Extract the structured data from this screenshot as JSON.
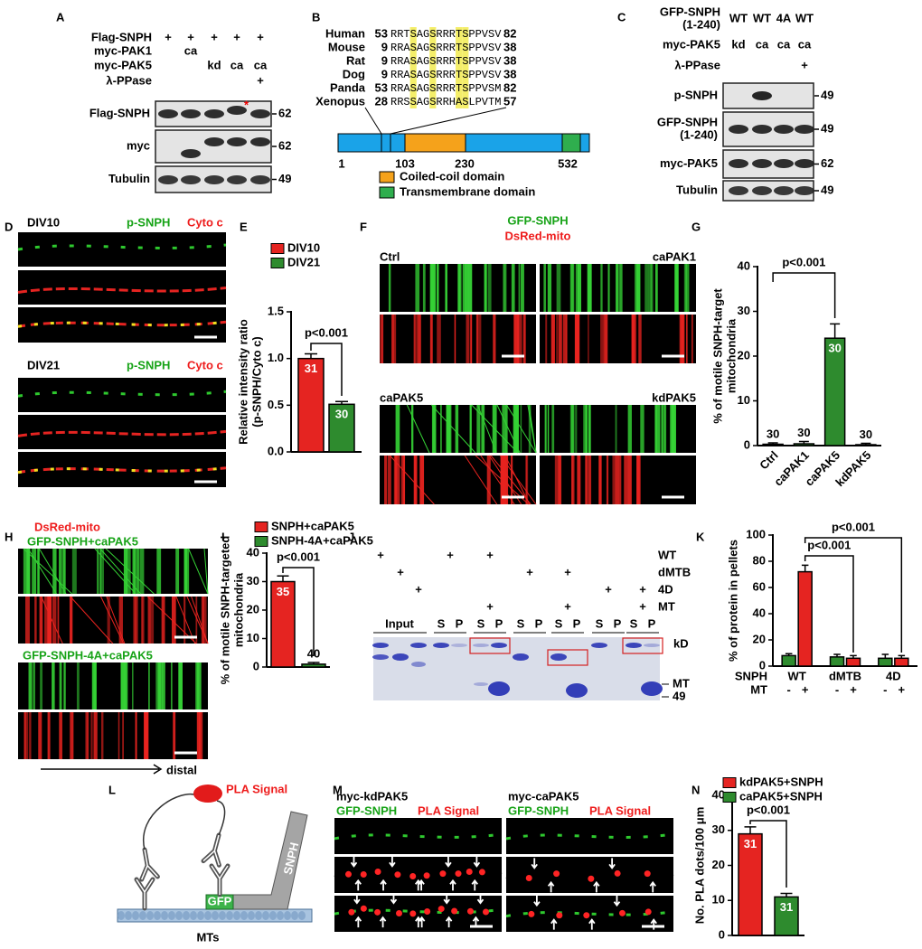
{
  "A": {
    "label": "A",
    "conditions": [
      {
        "name": "Flag-SNPH",
        "lanes": [
          "+",
          "+",
          "+",
          "+",
          "+"
        ]
      },
      {
        "name": "myc-PAK1",
        "lanes": [
          null,
          "ca",
          null,
          null,
          null
        ]
      },
      {
        "name": "myc-PAK5",
        "lanes": [
          null,
          null,
          "kd",
          "ca",
          "ca"
        ]
      },
      {
        "name": "λ-PPase",
        "lanes": [
          null,
          null,
          null,
          null,
          "+"
        ]
      }
    ],
    "blots": [
      {
        "name": [
          "Flag-SNPH"
        ],
        "mw": 62
      },
      {
        "name": [
          "myc"
        ],
        "mw": 62
      },
      {
        "name": [
          "Tubulin"
        ],
        "mw": 49
      }
    ],
    "marker": "*"
  },
  "B": {
    "label": "B",
    "alignment": [
      {
        "species": "Human",
        "start": 53,
        "sequence": "RRTSAGSRRRTSPPVSV",
        "end": 82
      },
      {
        "species": "Mouse",
        "start": 9,
        "sequence": "RRASAGSRRRTSPPVSV",
        "end": 38
      },
      {
        "species": "Rat",
        "start": 9,
        "sequence": "RRASAGSRRRTSPPVSV",
        "end": 38
      },
      {
        "species": "Dog",
        "start": 9,
        "sequence": "RRASAGSRRRTSPPVSV",
        "end": 38
      },
      {
        "species": "Panda",
        "start": 53,
        "sequence": "RRASAGSRRRTSPPVSM",
        "end": 82
      },
      {
        "species": "Xenopus",
        "start": 28,
        "sequence": "RRSSAGSRRHASLPVTM",
        "end": 57
      }
    ],
    "domain_positions": [
      1,
      103,
      230,
      532
    ],
    "legend": [
      "Coiled-coil domain",
      "Transmembrane domain"
    ]
  },
  "C": {
    "label": "C",
    "conditions": [
      {
        "name": [
          "GFP-SNPH",
          "(1-240)"
        ],
        "lanes": [
          "WT",
          "WT",
          "4A",
          "WT"
        ]
      },
      {
        "name": [
          "myc-PAK5"
        ],
        "lanes": [
          "kd",
          "ca",
          "ca",
          "ca"
        ]
      },
      {
        "name": [
          "λ-PPase"
        ],
        "lanes": [
          null,
          null,
          null,
          "+"
        ]
      }
    ],
    "blots": [
      {
        "name": [
          "p-SNPH"
        ],
        "mw": 49
      },
      {
        "name": [
          "GFP-SNPH",
          "(1-240)"
        ],
        "mw": 49
      },
      {
        "name": [
          "myc-PAK5"
        ],
        "mw": 62
      },
      {
        "name": [
          "Tubulin"
        ],
        "mw": 49
      }
    ]
  },
  "D": {
    "label": "D",
    "panels": [
      {
        "title": "DIV10",
        "stains": [
          "p-SNPH",
          "Cyto c"
        ]
      },
      {
        "title": "DIV21",
        "stains": [
          "p-SNPH",
          "Cyto c"
        ]
      }
    ]
  },
  "E": {
    "label": "E",
    "chart": {
      "type": "bar",
      "ylabel": [
        "Relative intensity ratio",
        "(p-SNPH/Cyto c)"
      ],
      "series": [
        {
          "name": "DIV10",
          "color": "#e52421",
          "values": [
            1.0
          ],
          "errors": [
            0.05
          ],
          "n": [
            31
          ]
        },
        {
          "name": "DIV21",
          "color": "#2e8b2e",
          "values": [
            0.51
          ],
          "errors": [
            0.03
          ],
          "n": [
            30
          ]
        }
      ],
      "ylim": [
        0,
        1.5
      ],
      "yticks": [
        {
          "value": 0,
          "label": "0.0"
        },
        {
          "value": 0.5,
          "label": "0.5"
        },
        {
          "value": 1,
          "label": "1.0"
        },
        {
          "value": 1.5,
          "label": "1.5"
        }
      ],
      "annotations": [
        "p<0.001"
      ]
    }
  },
  "F": {
    "label": "F",
    "stains": [
      "GFP-SNPH",
      "DsRed-mito"
    ],
    "conditions": [
      "Ctrl",
      "caPAK1",
      "caPAK5",
      "kdPAK5"
    ]
  },
  "G": {
    "label": "G",
    "chart": {
      "type": "bar",
      "ylabel": [
        "% of motile SNPH-target",
        "mitochondria"
      ],
      "categories": [
        "Ctrl",
        "caPAK1",
        "caPAK5",
        "kdPAK5"
      ],
      "series": [
        {
          "color": "#2e8b2e",
          "values": [
            0.3,
            0.4,
            24,
            0.2
          ],
          "errors": [
            0.3,
            0.5,
            3.2,
            0.3
          ],
          "n": [
            30,
            30,
            30,
            30
          ]
        }
      ],
      "ylim": [
        0,
        40
      ],
      "yticks": [
        0,
        10,
        20,
        30,
        40
      ],
      "annotations": [
        "p<0.001"
      ]
    }
  },
  "H": {
    "label": "H",
    "stain": "DsRed-mito",
    "conditions": [
      "GFP-SNPH+caPAK5",
      "GFP-SNPH-4A+caPAK5"
    ],
    "direction": "distal"
  },
  "I": {
    "label": "I",
    "chart": {
      "type": "bar",
      "ylabel": [
        "% of motile SNPH-targeted",
        "mitochondria"
      ],
      "series": [
        {
          "name": "SNPH+caPAK5",
          "color": "#e52421",
          "values": [
            30
          ],
          "errors": [
            2
          ],
          "n": [
            35
          ]
        },
        {
          "name": "SNPH-4A+caPAK5",
          "color": "#2e8b2e",
          "values": [
            1
          ],
          "errors": [
            0.6
          ],
          "n": [
            40
          ]
        }
      ],
      "ylim": [
        0,
        40
      ],
      "yticks": [
        0,
        10,
        20,
        30,
        40
      ],
      "annotations": [
        "p<0.001"
      ]
    }
  },
  "J": {
    "label": "J",
    "conditions": [
      {
        "name": "WT",
        "lanes": [
          "+",
          null,
          null,
          "+",
          "+",
          null,
          null,
          null,
          null
        ]
      },
      {
        "name": "dMTB",
        "lanes": [
          null,
          "+",
          null,
          null,
          null,
          "+",
          "+",
          null,
          null
        ]
      },
      {
        "name": "4D",
        "lanes": [
          null,
          null,
          "+",
          null,
          null,
          null,
          null,
          "+",
          "+"
        ]
      },
      {
        "name": "MT",
        "lanes": [
          null,
          null,
          null,
          null,
          "+",
          null,
          "+",
          null,
          "+"
        ]
      }
    ],
    "input_label": "Input",
    "fractions": [
      [
        "S",
        "P"
      ],
      [
        "S",
        "P"
      ],
      [
        "S",
        "P"
      ],
      [
        "S",
        "P"
      ],
      [
        "S",
        "P"
      ],
      [
        "S",
        "P"
      ]
    ],
    "unit": "kD",
    "markers": [
      "MT",
      49
    ]
  },
  "K": {
    "label": "K",
    "chart": {
      "type": "bar",
      "ylabel": [
        "% of protein in pellets"
      ],
      "row_labels": [
        "SNPH",
        "MT"
      ],
      "categories": [
        "WT",
        "dMTB",
        "4D"
      ],
      "series": [
        {
          "name": "-",
          "color": "#2e8b2e",
          "values": [
            8,
            7,
            6
          ],
          "errors": [
            1.5,
            2,
            3
          ]
        },
        {
          "name": "+",
          "color": "#e52421",
          "values": [
            72,
            6,
            6
          ],
          "errors": [
            5,
            2,
            2
          ]
        }
      ],
      "ylim": [
        0,
        100
      ],
      "yticks": [
        0,
        20,
        40,
        60,
        80,
        100
      ],
      "annotations": [
        "p<0.001",
        "p<0.001"
      ]
    }
  },
  "L": {
    "label": "L",
    "labels": {
      "signal": "PLA Signal",
      "protein": "SNPH",
      "tag": "GFP",
      "track": "MTs"
    }
  },
  "M": {
    "label": "M",
    "panels": [
      {
        "title": "myc-kdPAK5",
        "stains": [
          "GFP-SNPH",
          "PLA Signal"
        ]
      },
      {
        "title": "myc-caPAK5",
        "stains": [
          "GFP-SNPH",
          "PLA Signal"
        ]
      }
    ]
  },
  "N": {
    "label": "N",
    "chart": {
      "type": "bar",
      "ylabel": [
        "No. PLA dots/100 μm"
      ],
      "series": [
        {
          "name": "kdPAK5+SNPH",
          "color": "#e52421",
          "values": [
            29
          ],
          "errors": [
            2
          ],
          "n": [
            31
          ]
        },
        {
          "name": "caPAK5+SNPH",
          "color": "#2e8b2e",
          "values": [
            11
          ],
          "errors": [
            1
          ],
          "n": [
            31
          ]
        }
      ],
      "ylim": [
        0,
        40
      ],
      "yticks": [
        0,
        10,
        20,
        30,
        40
      ],
      "annotations": [
        "p<0.001"
      ]
    }
  }
}
